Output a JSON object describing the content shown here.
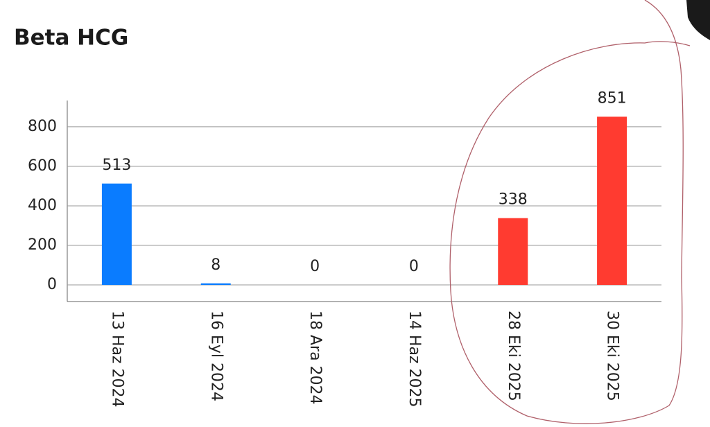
{
  "chart_data": {
    "type": "bar",
    "title": "Beta HCG",
    "categories": [
      "13 Haz 2024",
      "16 Eyl 2024",
      "18 Ara 2024",
      "14 Haz 2025",
      "28 Eki 2025",
      "30 Eki 2025"
    ],
    "values": [
      513,
      8,
      0,
      0,
      338,
      851
    ],
    "colors": [
      "#0a7cff",
      "#0a7cff",
      "#0a7cff",
      "#0a7cff",
      "#ff3b30",
      "#ff3b30"
    ],
    "ylim": [
      -84,
      933
    ],
    "yticks": [
      0,
      200,
      400,
      600,
      800
    ],
    "grid": true
  }
}
